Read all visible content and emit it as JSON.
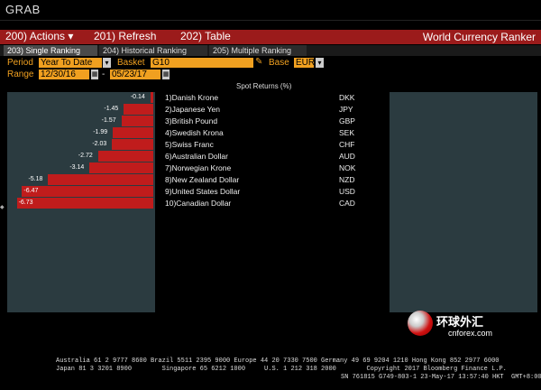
{
  "window": {
    "title": "GRAB"
  },
  "menu": {
    "items": [
      {
        "label": "200) Actions",
        "arrow": "▾"
      },
      {
        "label": "201) Refresh"
      },
      {
        "label": "202) Table"
      }
    ],
    "function_title": "World Currency Ranker"
  },
  "tabs": [
    {
      "label": "203) Single Ranking",
      "active": true
    },
    {
      "label": "204) Historical Ranking",
      "active": false
    },
    {
      "label": "205) Multiple Ranking",
      "active": false
    }
  ],
  "params": {
    "period_label": "Period",
    "period_value": "Year To Date",
    "basket_label": "Basket",
    "basket_value": "G10",
    "base_label": "Base",
    "base_value": "EUR",
    "range_label": "Range",
    "range_start": "12/30/16",
    "range_end": "05/23/17",
    "range_sep": "-"
  },
  "table": {
    "header": "Spot Returns (%)",
    "rows": [
      {
        "rank": "1)",
        "name": "Danish Krone",
        "code": "DKK",
        "value": -0.14,
        "label": "-0.14"
      },
      {
        "rank": "2)",
        "name": "Japanese Yen",
        "code": "JPY",
        "value": -1.45,
        "label": "-1.45"
      },
      {
        "rank": "3)",
        "name": "British Pound",
        "code": "GBP",
        "value": -1.57,
        "label": "-1.57"
      },
      {
        "rank": "4)",
        "name": "Swedish Krona",
        "code": "SEK",
        "value": -1.99,
        "label": "-1.99"
      },
      {
        "rank": "5)",
        "name": "Swiss Franc",
        "code": "CHF",
        "value": -2.03,
        "label": "-2.03"
      },
      {
        "rank": "6)",
        "name": "Australian Dollar",
        "code": "AUD",
        "value": -2.72,
        "label": "-2.72"
      },
      {
        "rank": "7)",
        "name": "Norwegian Krone",
        "code": "NOK",
        "value": -3.14,
        "label": "-3.14"
      },
      {
        "rank": "8)",
        "name": "New Zealand Dollar",
        "code": "NZD",
        "value": -5.18,
        "label": "-5.18"
      },
      {
        "rank": "9)",
        "name": "United States Dollar",
        "code": "USD",
        "value": -6.47,
        "label": "-6.47"
      },
      {
        "rank": "10)",
        "name": "Canadian Dollar",
        "code": "CAD",
        "value": -6.73,
        "label": "-6.73"
      }
    ]
  },
  "chart_data": {
    "type": "bar",
    "orientation": "horizontal",
    "categories": [
      "DKK",
      "JPY",
      "GBP",
      "SEK",
      "CHF",
      "AUD",
      "NOK",
      "NZD",
      "USD",
      "CAD"
    ],
    "values": [
      -0.14,
      -1.45,
      -1.57,
      -1.99,
      -2.03,
      -2.72,
      -3.14,
      -5.18,
      -6.47,
      -6.73
    ],
    "color": "#c01c1c",
    "background": "#2b3b40"
  },
  "watermark": {
    "brand_cn": "环球外汇",
    "brand_url": "cnforex.com"
  },
  "footer": {
    "line1": "Australia 61 2 9777 8600 Brazil 5511 2395 9000 Europe 44 20 7330 7500 Germany 49 69 9204 1210 Hong Kong 852 2977 6000",
    "line2": "Japan 81 3 3201 8900        Singapore 65 6212 1000     U.S. 1 212 318 2000        Copyright 2017 Bloomberg Finance L.P.",
    "line3": "SN 761815 G749-803-1 23-May-17 13:57:40 HKT  GMT+8:00"
  }
}
